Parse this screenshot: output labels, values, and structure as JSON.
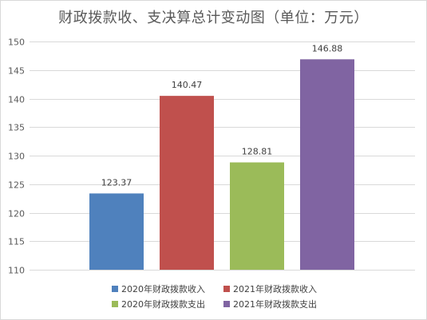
{
  "chart_data": {
    "type": "bar",
    "title": "财政拨款收、支决算总计变动图（单位：万元）",
    "categories": [
      "2020年财政拨款收入",
      "2021年财政拨款收入",
      "2020年财政拨款支出",
      "2021年财政拨款支出"
    ],
    "values": [
      123.37,
      140.47,
      128.81,
      146.88
    ],
    "value_labels": [
      "123.37",
      "140.47",
      "128.81",
      "146.88"
    ],
    "colors": [
      "#4f81bd",
      "#c0504d",
      "#9bbb59",
      "#8064a2"
    ],
    "ylim": [
      110,
      150
    ],
    "yticks": [
      110,
      115,
      120,
      125,
      130,
      135,
      140,
      145,
      150
    ],
    "grid": true,
    "legend_position": "bottom",
    "xlabel": "",
    "ylabel": ""
  }
}
